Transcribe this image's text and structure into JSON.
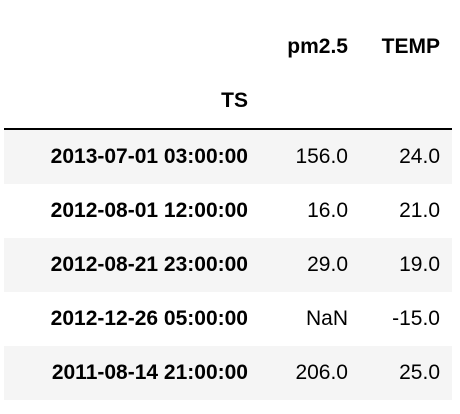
{
  "table": {
    "columns": [
      "pm2.5",
      "TEMP"
    ],
    "index_name": "TS",
    "rows": [
      {
        "index": "2013-07-01 03:00:00",
        "values": [
          "156.0",
          "24.0"
        ]
      },
      {
        "index": "2012-08-01 12:00:00",
        "values": [
          "16.0",
          "21.0"
        ]
      },
      {
        "index": "2012-08-21 23:00:00",
        "values": [
          "29.0",
          "19.0"
        ]
      },
      {
        "index": "2012-12-26 05:00:00",
        "values": [
          "NaN",
          "-15.0"
        ]
      },
      {
        "index": "2011-08-14 21:00:00",
        "values": [
          "206.0",
          "25.0"
        ]
      }
    ]
  }
}
